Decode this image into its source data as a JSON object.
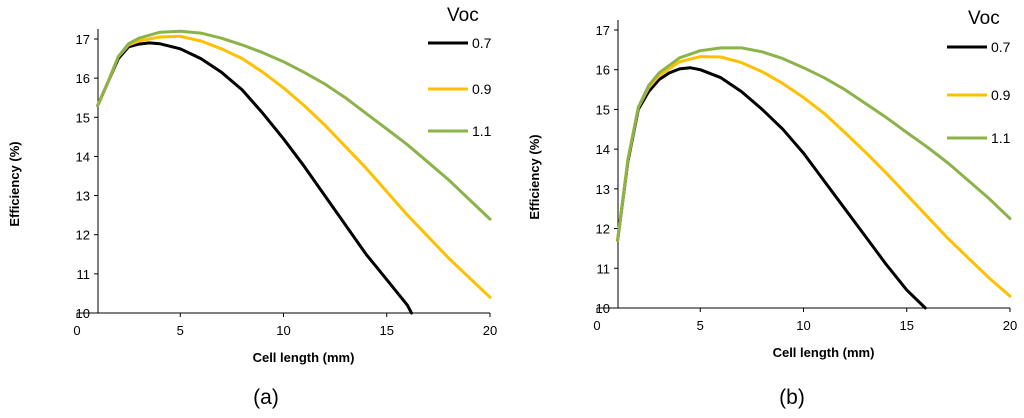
{
  "chart_data": [
    {
      "type": "line",
      "panel_label": "(a)",
      "xlabel": "Cell length (mm)",
      "ylabel": "Efficiency (%)",
      "xlim": [
        0,
        20
      ],
      "ylim": [
        10,
        17.5
      ],
      "xticks": [
        "0",
        "5",
        "10",
        "15",
        "20"
      ],
      "yticks": [
        "10",
        "11",
        "12",
        "13",
        "14",
        "15",
        "16",
        "17"
      ],
      "legend_title": "Voc",
      "legend_position": "top-right",
      "series": [
        {
          "name": "0.7",
          "color": "#000000",
          "x": [
            1,
            1.5,
            2,
            2.5,
            3,
            3.5,
            4,
            5,
            6,
            7,
            8,
            9,
            10,
            11,
            12,
            13,
            14,
            15,
            16,
            16.2
          ],
          "y": [
            15.3,
            15.9,
            16.5,
            16.8,
            16.87,
            16.9,
            16.88,
            16.75,
            16.5,
            16.15,
            15.7,
            15.1,
            14.45,
            13.75,
            13.0,
            12.25,
            11.5,
            10.85,
            10.2,
            10.0
          ]
        },
        {
          "name": "0.9",
          "color": "#FFC000",
          "x": [
            1,
            1.5,
            2,
            2.5,
            3,
            4,
            5,
            6,
            7,
            8,
            9,
            10,
            11,
            12,
            13,
            14,
            15,
            16,
            17,
            18,
            19,
            20
          ],
          "y": [
            15.3,
            15.9,
            16.55,
            16.85,
            16.95,
            17.05,
            17.07,
            16.95,
            16.75,
            16.5,
            16.15,
            15.75,
            15.3,
            14.8,
            14.25,
            13.7,
            13.1,
            12.5,
            11.95,
            11.4,
            10.9,
            10.4
          ]
        },
        {
          "name": "1.1",
          "color": "#8CB34A",
          "x": [
            1,
            1.5,
            2,
            2.5,
            3,
            4,
            5,
            6,
            7,
            8,
            9,
            10,
            11,
            12,
            13,
            14,
            15,
            16,
            17,
            18,
            19,
            20
          ],
          "y": [
            15.3,
            15.9,
            16.55,
            16.88,
            17.02,
            17.17,
            17.2,
            17.15,
            17.02,
            16.85,
            16.65,
            16.42,
            16.15,
            15.85,
            15.5,
            15.1,
            14.7,
            14.3,
            13.85,
            13.4,
            12.9,
            12.4
          ]
        }
      ]
    },
    {
      "type": "line",
      "panel_label": "(b)",
      "xlabel": "Cell length (mm)",
      "ylabel": "Efficiency (%)",
      "xlim": [
        0,
        20
      ],
      "ylim": [
        10,
        17.5
      ],
      "xticks": [
        "0",
        "5",
        "10",
        "15",
        "20"
      ],
      "yticks": [
        "10",
        "11",
        "12",
        "13",
        "14",
        "15",
        "16",
        "17"
      ],
      "legend_title": "Voc",
      "legend_position": "top-right",
      "series": [
        {
          "name": "0.7",
          "color": "#000000",
          "x": [
            1,
            1.5,
            2,
            2.5,
            3,
            3.5,
            4,
            4.5,
            5,
            6,
            7,
            8,
            9,
            10,
            11,
            12,
            13,
            14,
            15,
            15.9
          ],
          "y": [
            11.7,
            13.7,
            15.0,
            15.45,
            15.75,
            15.92,
            16.02,
            16.05,
            16.0,
            15.8,
            15.45,
            15.0,
            14.5,
            13.9,
            13.2,
            12.5,
            11.8,
            11.1,
            10.45,
            10.0
          ]
        },
        {
          "name": "0.9",
          "color": "#FFC000",
          "x": [
            1,
            1.5,
            2,
            2.5,
            3,
            4,
            5,
            6,
            7,
            8,
            9,
            10,
            11,
            12,
            13,
            14,
            15,
            16,
            17,
            18,
            19,
            20
          ],
          "y": [
            11.7,
            13.75,
            15.05,
            15.55,
            15.85,
            16.2,
            16.33,
            16.32,
            16.18,
            15.95,
            15.65,
            15.3,
            14.9,
            14.42,
            13.92,
            13.4,
            12.85,
            12.3,
            11.75,
            11.25,
            10.75,
            10.3
          ]
        },
        {
          "name": "1.1",
          "color": "#8CB34A",
          "x": [
            1,
            1.5,
            2,
            2.5,
            3,
            4,
            5,
            6,
            7,
            8,
            9,
            10,
            11,
            12,
            13,
            14,
            15,
            16,
            17,
            18,
            19,
            20
          ],
          "y": [
            11.7,
            13.75,
            15.05,
            15.6,
            15.92,
            16.3,
            16.48,
            16.55,
            16.55,
            16.45,
            16.28,
            16.05,
            15.8,
            15.5,
            15.15,
            14.8,
            14.42,
            14.05,
            13.65,
            13.2,
            12.75,
            12.25
          ]
        }
      ]
    }
  ]
}
